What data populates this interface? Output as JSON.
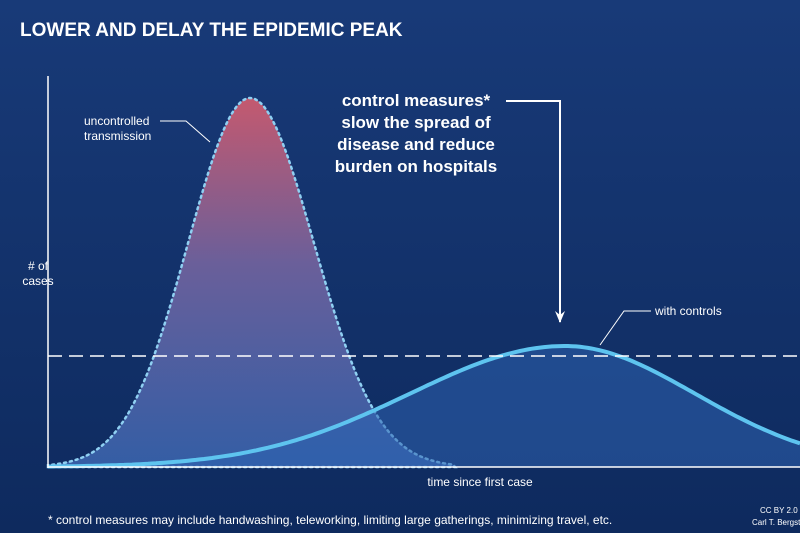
{
  "title": "LOWER AND DELAY THE EPIDEMIC PEAK",
  "y_axis_label": {
    "lines": [
      "# of",
      "cases"
    ]
  },
  "x_axis_label": "time since first case",
  "uncontrolled_label": {
    "lines": [
      "uncontrolled",
      "transmission"
    ]
  },
  "controlled_label": "with controls",
  "annotation": {
    "lines": [
      "control measures*",
      "slow the spread of",
      "disease and reduce",
      "burden on hospitals"
    ]
  },
  "footnote": "* control measures may include handwashing, teleworking, limiting large gatherings, minimizing travel, etc.",
  "credit": {
    "lines": [
      "CC BY 2.0",
      "Carl T. Bergstrom"
    ]
  }
}
